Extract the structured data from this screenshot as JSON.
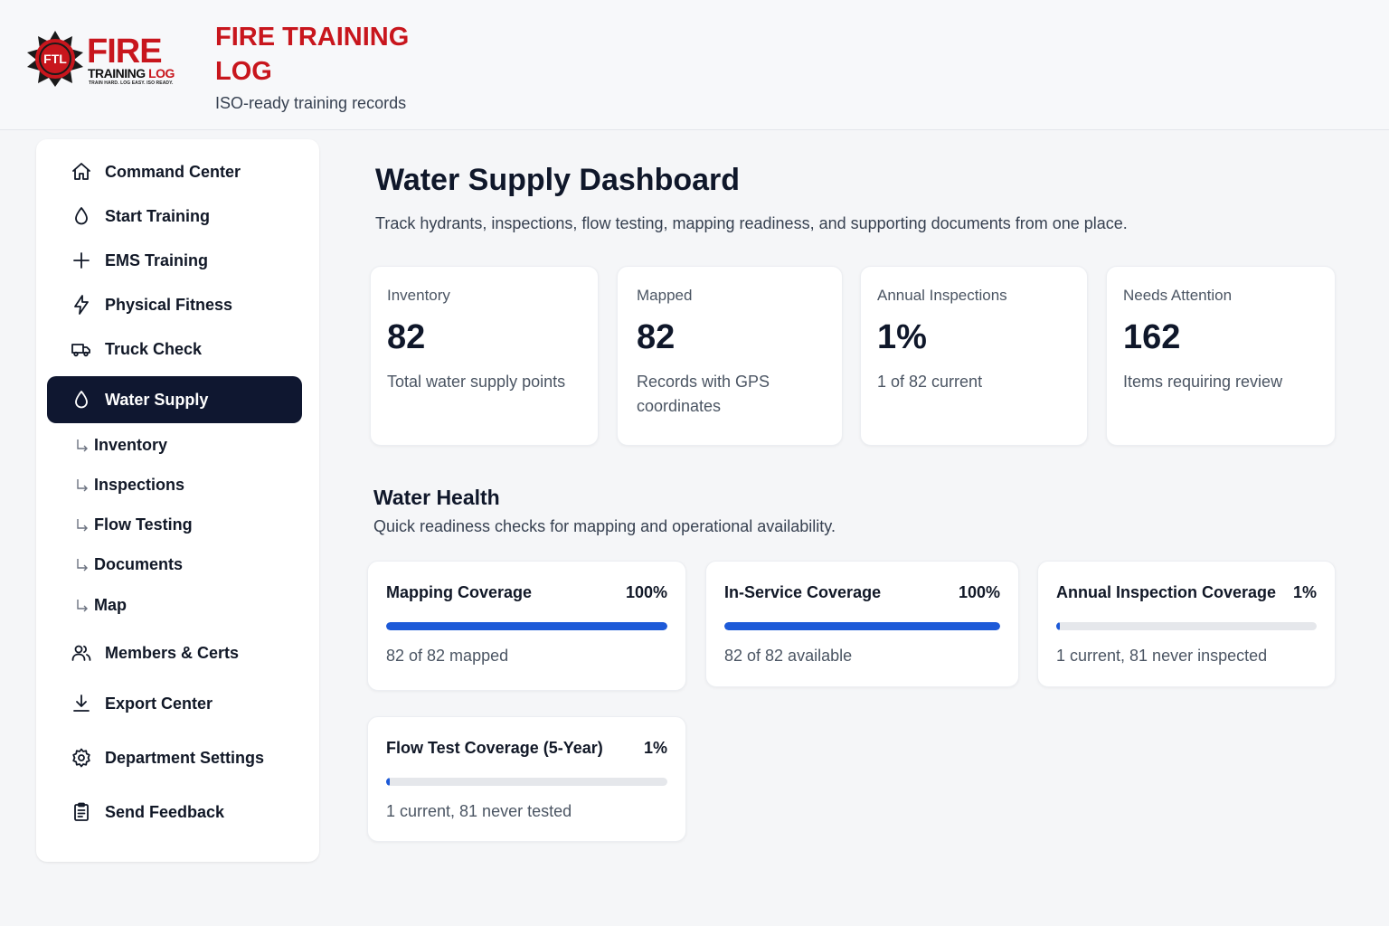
{
  "brand": {
    "logo_badge_text": "FTL",
    "logo_word_fire": "FIRE",
    "logo_word_training": "TRAINING",
    "logo_word_log": "LOG",
    "logo_tagline": "TRAIN HARD. LOG EASY. ISO READY.",
    "title": "FIRE TRAINING LOG",
    "subtitle": "ISO-ready training records",
    "accent_color": "#c8161d"
  },
  "sidebar": {
    "items": [
      {
        "label": "Command Center",
        "icon": "home-icon"
      },
      {
        "label": "Start Training",
        "icon": "drop-icon"
      },
      {
        "label": "EMS Training",
        "icon": "plus-icon"
      },
      {
        "label": "Physical Fitness",
        "icon": "bolt-icon"
      },
      {
        "label": "Truck Check",
        "icon": "truck-icon"
      },
      {
        "label": "Water Supply",
        "icon": "drop-icon",
        "active": true
      }
    ],
    "sub_items": [
      {
        "label": "Inventory"
      },
      {
        "label": "Inspections"
      },
      {
        "label": "Flow Testing"
      },
      {
        "label": "Documents"
      },
      {
        "label": "Map"
      }
    ],
    "lower_items": [
      {
        "label": "Members & Certs",
        "icon": "users-icon"
      },
      {
        "label": "Export Center",
        "icon": "download-icon"
      },
      {
        "label": "Department Settings",
        "icon": "gear-icon"
      },
      {
        "label": "Send Feedback",
        "icon": "clipboard-icon"
      }
    ],
    "active_color": "#0f1730"
  },
  "main": {
    "title": "Water Supply Dashboard",
    "description": "Track hydrants, inspections, flow testing, mapping readiness, and supporting documents from one place.",
    "stats": [
      {
        "label": "Inventory",
        "value": "82",
        "note": "Total water supply points"
      },
      {
        "label": "Mapped",
        "value": "82",
        "note": "Records with GPS coordinates"
      },
      {
        "label": "Annual Inspections",
        "value": "1%",
        "note": "1 of 82 current"
      },
      {
        "label": "Needs Attention",
        "value": "162",
        "note": "Items requiring review"
      }
    ],
    "health": {
      "title": "Water Health",
      "description": "Quick readiness checks for mapping and operational availability.",
      "cards": [
        {
          "title": "Mapping Coverage",
          "percent_label": "100%",
          "fill": 1.0,
          "note": "82 of 82 mapped"
        },
        {
          "title": "In-Service Coverage",
          "percent_label": "100%",
          "fill": 1.0,
          "note": "82 of 82 available"
        },
        {
          "title": "Annual Inspection Coverage",
          "percent_label": "1%",
          "fill": 0.012,
          "note": "1 current, 81 never inspected"
        },
        {
          "title": "Flow Test Coverage (5-Year)",
          "percent_label": "1%",
          "fill": 0.012,
          "note": "1 current, 81 never tested"
        }
      ],
      "bar_color": "#1d5ad8"
    }
  }
}
